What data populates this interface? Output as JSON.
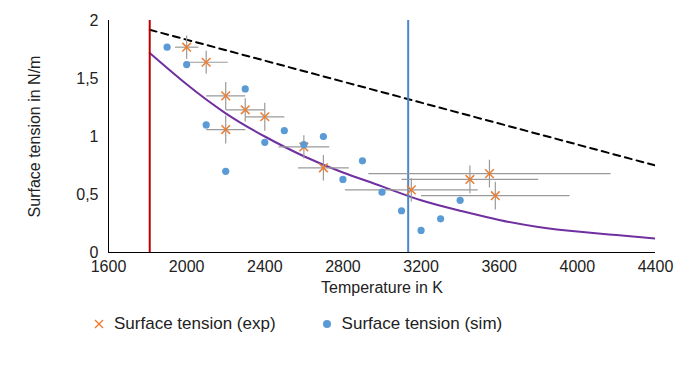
{
  "chart_data": {
    "type": "scatter",
    "x_label": "Temperature in K",
    "y_label": "Surface tension in N/m",
    "xlim": [
      1600,
      4400
    ],
    "xticks": [
      1600,
      2000,
      2400,
      2800,
      3200,
      3600,
      4000,
      4400
    ],
    "ylim": [
      0,
      2
    ],
    "yticks": [
      0,
      {
        "value": 0.5,
        "label": "0,5"
      },
      1,
      {
        "value": 1.5,
        "label": "1,5"
      },
      2
    ],
    "grid": false,
    "legend": "bottom",
    "reference_lines": [
      {
        "axis": "x",
        "value": 1811,
        "color": "#c00000"
      },
      {
        "axis": "x",
        "value": 3134,
        "color": "#4a86c8"
      }
    ],
    "series": [
      {
        "name": "Surface tension (exp)",
        "type": "scatter",
        "marker": "x",
        "color": "#ed7d31",
        "x": [
          2000,
          2100,
          2200,
          2200,
          2300,
          2400,
          2600,
          2700,
          3150,
          3450,
          3550,
          3580
        ],
        "values": [
          1.77,
          1.64,
          1.35,
          1.06,
          1.23,
          1.17,
          0.91,
          0.73,
          0.54,
          0.63,
          0.68,
          0.49
        ],
        "x_err": [
          60,
          110,
          100,
          100,
          100,
          100,
          130,
          130,
          340,
          350,
          620,
          380
        ],
        "y_err": [
          0.1,
          0.1,
          0.12,
          0.12,
          0.1,
          0.12,
          0.1,
          0.11,
          0.1,
          0.12,
          0.12,
          0.12
        ]
      },
      {
        "name": "Surface tension (sim)",
        "type": "scatter",
        "marker": "circle",
        "color": "#5b9bd5",
        "x": [
          1900,
          2000,
          2100,
          2200,
          2300,
          2400,
          2500,
          2600,
          2700,
          2800,
          2900,
          3000,
          3100,
          3200,
          3300,
          3400
        ],
        "values": [
          1.77,
          1.62,
          1.1,
          0.7,
          1.41,
          0.95,
          1.05,
          0.93,
          1.0,
          0.63,
          0.79,
          0.52,
          0.36,
          0.19,
          0.29,
          0.45
        ]
      },
      {
        "type": "line",
        "line_style": "solid",
        "color": "#7030a0",
        "x": [
          1811,
          2000,
          2200,
          2400,
          2600,
          2800,
          3000,
          3200,
          3400,
          3600,
          3800,
          4000,
          4200,
          4400
        ],
        "values": [
          1.72,
          1.45,
          1.2,
          1.0,
          0.83,
          0.69,
          0.57,
          0.45,
          0.36,
          0.28,
          0.22,
          0.18,
          0.15,
          0.12
        ]
      },
      {
        "type": "line",
        "line_style": "dashed",
        "color": "#000000",
        "x": [
          1811,
          4400
        ],
        "values": [
          1.92,
          0.75
        ]
      }
    ]
  }
}
